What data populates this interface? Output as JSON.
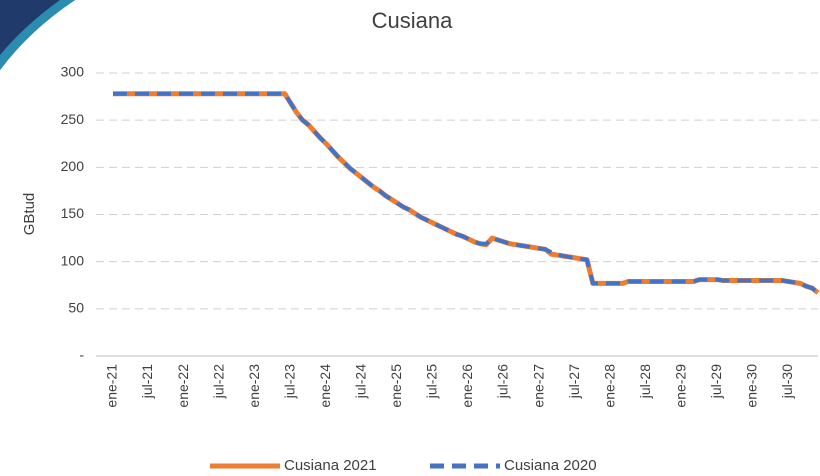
{
  "chart_data": {
    "type": "line",
    "title": "Cusiana",
    "y_label": "GBtud",
    "categories": [
      "ene-21",
      null,
      null,
      null,
      null,
      null,
      "jul-21",
      null,
      null,
      null,
      null,
      null,
      "ene-22",
      null,
      null,
      null,
      null,
      null,
      "jul-22",
      null,
      null,
      null,
      null,
      null,
      "ene-23",
      null,
      null,
      null,
      null,
      null,
      "jul-23",
      null,
      null,
      null,
      null,
      null,
      "ene-24",
      null,
      null,
      null,
      null,
      null,
      "jul-24",
      null,
      null,
      null,
      null,
      null,
      "ene-25",
      null,
      null,
      null,
      null,
      null,
      "jul-25",
      null,
      null,
      null,
      null,
      null,
      "ene-26",
      null,
      null,
      null,
      null,
      null,
      "jul-26",
      null,
      null,
      null,
      null,
      null,
      "ene-27",
      null,
      null,
      null,
      null,
      null,
      "jul-27",
      null,
      null,
      null,
      null,
      null,
      "ene-28",
      null,
      null,
      null,
      null,
      null,
      "jul-28",
      null,
      null,
      null,
      null,
      null,
      "ene-29",
      null,
      null,
      null,
      null,
      null,
      "jul-29",
      null,
      null,
      null,
      null,
      null,
      "ene-30",
      null,
      null,
      null,
      null,
      null,
      "jul-30",
      null,
      null,
      null,
      null,
      null
    ],
    "series": [
      {
        "name": "Cusiana 2021",
        "color": "#ed7d31",
        "dashed": false,
        "values": [
          278,
          278,
          278,
          278,
          278,
          278,
          278,
          278,
          278,
          278,
          278,
          278,
          278,
          278,
          278,
          278,
          278,
          278,
          278,
          278,
          278,
          278,
          278,
          278,
          278,
          278,
          278,
          278,
          278,
          278,
          268,
          258,
          250,
          245,
          238,
          231,
          225,
          218,
          211,
          205,
          199,
          194,
          189,
          184,
          179,
          175,
          170,
          166,
          162,
          158,
          155,
          151,
          147,
          144,
          141,
          138,
          135,
          132,
          129,
          127,
          124,
          121,
          119,
          118,
          125,
          123,
          121,
          119,
          118,
          117,
          116,
          115,
          114,
          113,
          108,
          107,
          106,
          105,
          104,
          103,
          102,
          77,
          77,
          77,
          77,
          77,
          77,
          79,
          79,
          79,
          79,
          79,
          79,
          79,
          79,
          79,
          79,
          79,
          79,
          81,
          81,
          81,
          81,
          80,
          80,
          80,
          80,
          80,
          80,
          80,
          80,
          80,
          80,
          80,
          79,
          78,
          77,
          74,
          72,
          67
        ]
      },
      {
        "name": "Cusiana 2020",
        "color": "#4472c4",
        "dashed": true,
        "values": [
          278,
          278,
          278,
          278,
          278,
          278,
          278,
          278,
          278,
          278,
          278,
          278,
          278,
          278,
          278,
          278,
          278,
          278,
          278,
          278,
          278,
          278,
          278,
          278,
          278,
          278,
          278,
          278,
          278,
          278,
          268,
          258,
          250,
          245,
          238,
          231,
          225,
          218,
          211,
          205,
          199,
          194,
          189,
          184,
          179,
          175,
          170,
          166,
          162,
          158,
          155,
          151,
          147,
          144,
          141,
          138,
          135,
          132,
          129,
          127,
          124,
          121,
          119,
          119,
          125,
          123,
          121,
          119,
          118,
          117,
          116,
          115,
          114,
          113,
          110,
          108,
          106,
          105,
          104,
          103,
          102,
          77,
          77,
          77,
          77,
          77,
          77,
          79,
          79,
          79,
          79,
          79,
          79,
          79,
          79,
          79,
          79,
          79,
          79,
          81,
          81,
          81,
          81,
          80,
          80,
          80,
          80,
          80,
          80,
          80,
          80,
          80,
          80,
          80,
          79,
          78,
          77,
          74,
          72,
          67
        ]
      }
    ],
    "ylim": [
      0,
      300
    ],
    "yticks": [
      {
        "value": 0,
        "label": "-"
      },
      50,
      100,
      150,
      200,
      250,
      300
    ],
    "grid": true,
    "legend": "bottom"
  }
}
